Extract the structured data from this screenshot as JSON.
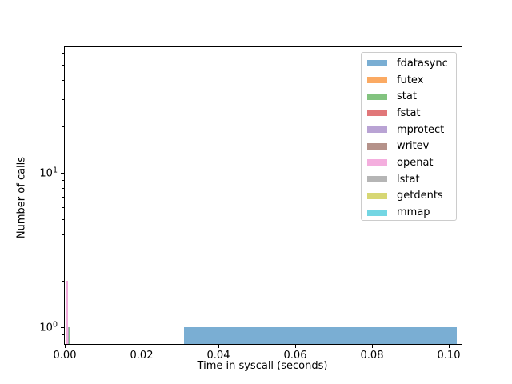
{
  "chart_data": {
    "type": "histogram",
    "title": "",
    "xlabel": "Time in syscall (seconds)",
    "ylabel": "Number of calls",
    "xscale": "linear",
    "yscale": "log",
    "xlim": [
      0,
      0.10333
    ],
    "ylim": [
      0.778,
      65
    ],
    "grid": false,
    "x_ticks": [
      {
        "value": 0.0,
        "label": "0.00"
      },
      {
        "value": 0.02,
        "label": "0.02"
      },
      {
        "value": 0.04,
        "label": "0.04"
      },
      {
        "value": 0.06,
        "label": "0.06"
      },
      {
        "value": 0.08,
        "label": "0.08"
      },
      {
        "value": 0.1,
        "label": "0.10"
      }
    ],
    "y_major_ticks": [
      {
        "value": 1,
        "mantissa": "10",
        "exponent": "0"
      },
      {
        "value": 10,
        "mantissa": "10",
        "exponent": "1"
      }
    ],
    "y_minor_tick_values": [
      0.9,
      2,
      3,
      4,
      5,
      6,
      7,
      8,
      9,
      20,
      30,
      40,
      50,
      60
    ],
    "legend": {
      "position": "upper right",
      "items": [
        {
          "label": "fdatasync",
          "color": "#7aaed3"
        },
        {
          "label": "futex",
          "color": "#fbaa63"
        },
        {
          "label": "stat",
          "color": "#82c37f"
        },
        {
          "label": "fstat",
          "color": "#e17779"
        },
        {
          "label": "mprotect",
          "color": "#b9a3d4"
        },
        {
          "label": "writev",
          "color": "#b5928a"
        },
        {
          "label": "openat",
          "color": "#f4aede"
        },
        {
          "label": "lstat",
          "color": "#b5b5b5"
        },
        {
          "label": "getdents",
          "color": "#d7d774"
        },
        {
          "label": "mmap",
          "color": "#73d6e3"
        }
      ]
    },
    "bars": [
      {
        "series": "fdatasync",
        "x0": 0.031,
        "x1": 0.1021,
        "count": 1,
        "color": "#7aaed3"
      },
      {
        "series": "near-zero-overlap-teal",
        "x0": 0.0002,
        "x1": 0.0005,
        "count": 2,
        "color": "#4b9fa8"
      },
      {
        "series": "near-zero-openat-pink",
        "x0": 0.0005,
        "x1": 0.0008,
        "count": 2,
        "color": "#f2abdd"
      },
      {
        "series": "near-zero-overlap-mauve",
        "x0": 0.0008,
        "x1": 0.0011,
        "count": 1,
        "color": "#b2a0c0"
      },
      {
        "series": "near-zero-stat-green",
        "x0": 0.0011,
        "x1": 0.0015,
        "count": 1,
        "color": "#86c389"
      }
    ]
  }
}
